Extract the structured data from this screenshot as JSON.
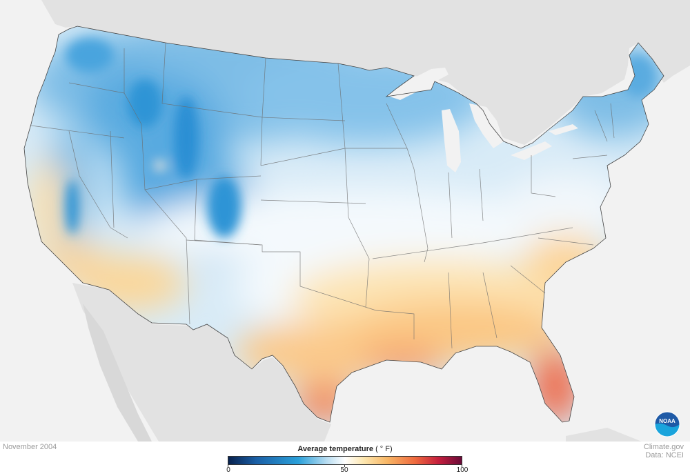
{
  "map": {
    "region": "Contiguous United States",
    "variable": "Average temperature",
    "period": "November 2004"
  },
  "footer": {
    "date": "November 2004",
    "credit_site": "Climate.gov",
    "credit_data": "Data: NCEI"
  },
  "legend": {
    "title": "Average temperature",
    "unit": "( ° F)",
    "min": "0",
    "mid": "50",
    "max": "100",
    "colors": {
      "0": "#08214e",
      "25": "#2aa0da",
      "50": "#ffffff",
      "75": "#ef6a3e",
      "100": "#6a0a38"
    }
  },
  "colors": {
    "background": "#f2f2f2",
    "land_outside": "#e2e2e2",
    "cold": "#2a95d6",
    "cool": "#a8d3ef",
    "neutral": "#ffffff",
    "warm": "#fbd38e",
    "hot": "#ef6a4a",
    "lakes": "#f2f2f2",
    "borders": "#555555"
  },
  "logo": {
    "icon": "noaa-logo-icon",
    "text": "NOAA"
  }
}
